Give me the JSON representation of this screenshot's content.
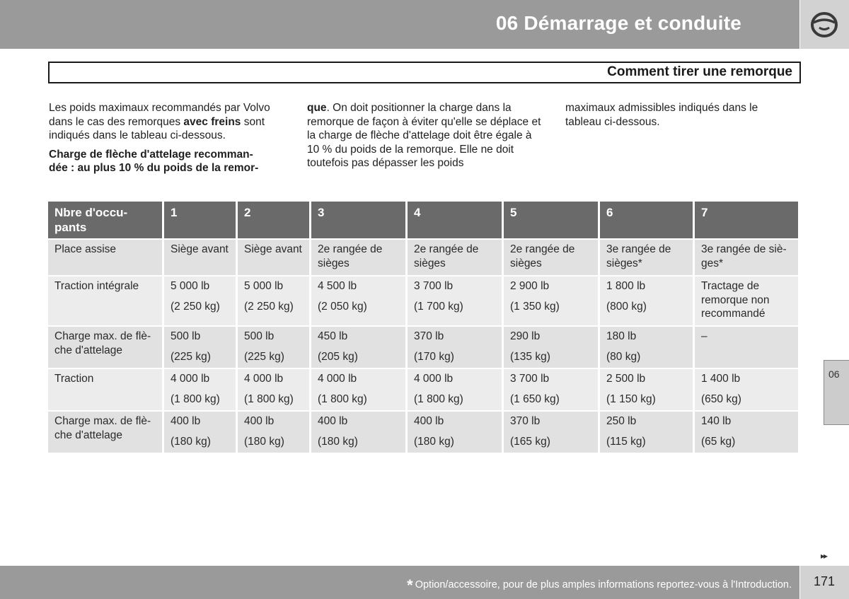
{
  "header": {
    "chapter_title": "06 Démarrage et conduite",
    "icon": "steering-wheel-icon"
  },
  "section": {
    "title": "Comment tirer une remorque"
  },
  "intro": {
    "col1": {
      "p1_a": "Les poids maximaux recommandés par Volvo dans le cas des remorques ",
      "p1_bold": "avec freins",
      "p1_b": " sont indiqués dans le tableau ci-dessous.",
      "p2_bold": "Charge de flèche d'attelage recomman- dée : au plus 10 % du poids de la remor-"
    },
    "col2": {
      "p1_bold": "que",
      "p1_rest": ". On doit positionner la charge dans la remorque de façon à éviter qu'elle se déplace et la charge de flèche d'attelage doit être égale à 10 % du poids de la remorque. Elle ne doit toutefois pas dépasser les poids"
    },
    "col3": {
      "p1": "maximaux admissibles indiqués dans le tableau ci-dessous."
    }
  },
  "table": {
    "headers": [
      "Nbre d'occu- pants",
      "1",
      "2",
      "3",
      "4",
      "5",
      "6",
      "7"
    ],
    "rows": [
      {
        "label": "Place assise",
        "cells": [
          [
            "Siège avant",
            ""
          ],
          [
            "Siège avant",
            ""
          ],
          [
            "2e rangée de sièges",
            ""
          ],
          [
            "2e rangée de sièges",
            ""
          ],
          [
            "2e rangée de sièges",
            ""
          ],
          [
            "3e rangée de sièges*",
            ""
          ],
          [
            "3e rangée de siè- ges*",
            ""
          ]
        ]
      },
      {
        "label": "Traction intégrale",
        "cells": [
          [
            "5 000 lb",
            "(2 250 kg)"
          ],
          [
            "5 000 lb",
            "(2 250 kg)"
          ],
          [
            "4 500 lb",
            "(2 050 kg)"
          ],
          [
            "3 700 lb",
            "(1 700 kg)"
          ],
          [
            "2 900 lb",
            "(1 350 kg)"
          ],
          [
            "1 800 lb",
            "(800 kg)"
          ],
          [
            "Tractage de remorque non recommandé",
            ""
          ]
        ]
      },
      {
        "label": "Charge max. de flè- che d'attelage",
        "cells": [
          [
            "500 lb",
            "(225 kg)"
          ],
          [
            "500 lb",
            "(225 kg)"
          ],
          [
            "450 lb",
            "(205 kg)"
          ],
          [
            "370 lb",
            "(170 kg)"
          ],
          [
            "290 lb",
            "(135 kg)"
          ],
          [
            "180 lb",
            "(80 kg)"
          ],
          [
            "–",
            ""
          ]
        ]
      },
      {
        "label": "Traction",
        "cells": [
          [
            "4 000 lb",
            "(1 800 kg)"
          ],
          [
            "4 000 lb",
            "(1 800 kg)"
          ],
          [
            "4 000 lb",
            "(1 800 kg)"
          ],
          [
            "4 000 lb",
            "(1 800 kg)"
          ],
          [
            "3 700 lb",
            "(1 650 kg)"
          ],
          [
            "2 500 lb",
            "(1 150 kg)"
          ],
          [
            "1 400 lb",
            "(650 kg)"
          ]
        ]
      },
      {
        "label": "Charge max. de flè- che d'attelage",
        "cells": [
          [
            "400 lb",
            "(180 kg)"
          ],
          [
            "400 lb",
            "(180 kg)"
          ],
          [
            "400 lb",
            "(180 kg)"
          ],
          [
            "400 lb",
            "(180 kg)"
          ],
          [
            "370 lb",
            "(165 kg)"
          ],
          [
            "250 lb",
            "(115 kg)"
          ],
          [
            "140 lb",
            "(65 kg)"
          ]
        ]
      }
    ]
  },
  "side_tab": {
    "label": "06"
  },
  "footer": {
    "next_arrows": "▸▸",
    "footnote_star": "*",
    "footnote_text": "Option/accessoire, pour de plus amples informations reportez-vous à l'Introduction.",
    "page_number": "171"
  },
  "colors": {
    "bar_gray": "#9a9a9a",
    "header_cell": "#6a6a6a",
    "row_odd": "#e1e1e1",
    "row_even": "#ececec"
  }
}
